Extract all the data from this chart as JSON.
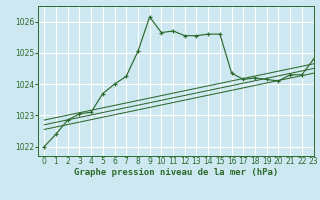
{
  "title": "Graphe pression niveau de la mer (hPa)",
  "bg_color": "#cde8f0",
  "grid_color": "#ffffff",
  "line_color": "#2d6a2d",
  "xlim": [
    -0.5,
    23
  ],
  "ylim": [
    1021.7,
    1026.5
  ],
  "yticks": [
    1022,
    1023,
    1024,
    1025,
    1026
  ],
  "xticks": [
    0,
    1,
    2,
    3,
    4,
    5,
    6,
    7,
    8,
    9,
    10,
    11,
    12,
    13,
    14,
    15,
    16,
    17,
    18,
    19,
    20,
    21,
    22,
    23
  ],
  "main_line_x": [
    0,
    1,
    2,
    3,
    4,
    5,
    6,
    7,
    8,
    9,
    10,
    11,
    12,
    13,
    14,
    15,
    16,
    17,
    18,
    19,
    20,
    21,
    22,
    23
  ],
  "main_line_y": [
    1022.0,
    1022.4,
    1022.85,
    1023.05,
    1023.1,
    1023.7,
    1024.0,
    1024.25,
    1025.05,
    1026.15,
    1025.65,
    1025.7,
    1025.55,
    1025.55,
    1025.6,
    1025.6,
    1024.35,
    1024.15,
    1024.2,
    1024.15,
    1024.1,
    1024.3,
    1024.3,
    1024.8
  ],
  "trend1_x": [
    0,
    23
  ],
  "trend1_y": [
    1022.55,
    1024.35
  ],
  "trend2_x": [
    0,
    23
  ],
  "trend2_y": [
    1022.7,
    1024.5
  ],
  "trend3_x": [
    0,
    23
  ],
  "trend3_y": [
    1022.85,
    1024.65
  ],
  "title_fontsize": 6.5,
  "tick_fontsize": 5.5
}
